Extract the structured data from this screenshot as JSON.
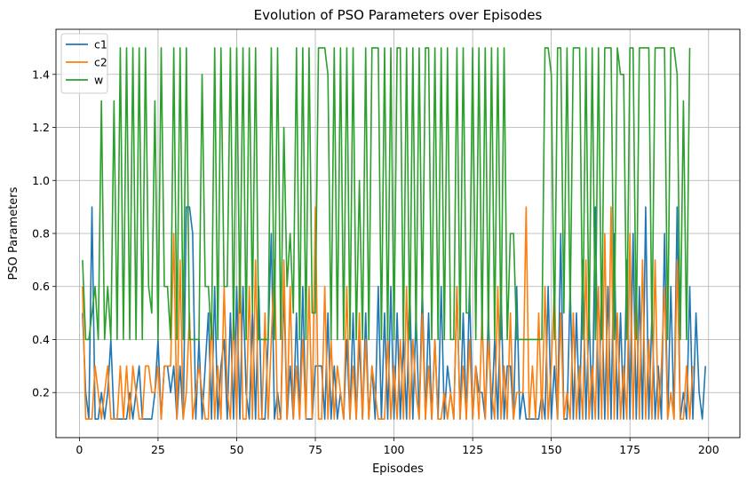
{
  "chart_data": {
    "type": "line",
    "title": "Evolution of PSO Parameters over Episodes",
    "xlabel": "Episodes",
    "ylabel": "PSO Parameters",
    "xlim": [
      -7.45,
      209.95
    ],
    "ylim": [
      0.03,
      1.57
    ],
    "xticks": [
      0,
      25,
      50,
      75,
      100,
      125,
      150,
      175,
      200
    ],
    "yticks": [
      0.2,
      0.4,
      0.6,
      0.8,
      1.0,
      1.2,
      1.4
    ],
    "ytick_labels": [
      "0.2",
      "0.4",
      "0.6",
      "0.8",
      "1.0",
      "1.2",
      "1.4"
    ],
    "grid": true,
    "legend_position": "top-left",
    "x_start": 1,
    "series": [
      {
        "name": "c1",
        "color": "#1f77b4",
        "values": [
          0.5,
          0.2,
          0.1,
          0.9,
          0.1,
          0.1,
          0.2,
          0.1,
          0.2,
          0.4,
          0.1,
          0.1,
          0.1,
          0.1,
          0.1,
          0.2,
          0.1,
          0.2,
          0.3,
          0.1,
          0.1,
          0.1,
          0.1,
          0.2,
          0.4,
          0.1,
          0.3,
          0.3,
          0.2,
          0.3,
          0.1,
          0.3,
          0.1,
          0.9,
          0.9,
          0.8,
          0.1,
          0.4,
          0.1,
          0.3,
          0.5,
          0.1,
          0.6,
          0.1,
          0.3,
          0.4,
          0.1,
          0.5,
          0.1,
          0.6,
          0.1,
          0.6,
          0.2,
          0.1,
          0.5,
          0.1,
          0.6,
          0.1,
          0.1,
          0.4,
          0.8,
          0.1,
          0.2,
          0.1,
          0.6,
          0.1,
          0.3,
          0.1,
          0.5,
          0.1,
          0.6,
          0.1,
          0.1,
          0.1,
          0.3,
          0.3,
          0.3,
          0.1,
          0.5,
          0.1,
          0.3,
          0.1,
          0.2,
          0.1,
          0.4,
          0.1,
          0.5,
          0.1,
          0.4,
          0.1,
          0.5,
          0.1,
          0.3,
          0.1,
          0.6,
          0.1,
          0.5,
          0.1,
          0.6,
          0.1,
          0.5,
          0.1,
          0.4,
          0.1,
          0.6,
          0.1,
          0.5,
          0.1,
          0.6,
          0.1,
          0.5,
          0.1,
          0.4,
          0.1,
          0.6,
          0.1,
          0.3,
          0.2,
          0.1,
          0.6,
          0.1,
          0.5,
          0.1,
          0.6,
          0.1,
          0.3,
          0.2,
          0.2,
          0.1,
          0.5,
          0.1,
          0.4,
          0.1,
          0.6,
          0.1,
          0.3,
          0.3,
          0.1,
          0.6,
          0.1,
          0.2,
          0.1,
          0.1,
          0.1,
          0.1,
          0.1,
          0.2,
          0.1,
          0.6,
          0.1,
          0.3,
          0.1,
          0.8,
          0.1,
          0.1,
          0.6,
          0.1,
          0.5,
          0.1,
          0.7,
          0.1,
          0.5,
          0.1,
          0.9,
          0.1,
          0.6,
          0.1,
          0.6,
          0.1,
          0.8,
          0.1,
          0.5,
          0.1,
          0.7,
          0.1,
          0.8,
          0.1,
          0.6,
          0.1,
          0.9,
          0.1,
          0.5,
          0.1,
          0.3,
          0.1,
          0.8,
          0.1,
          0.6,
          0.1,
          0.9,
          0.1,
          0.2,
          0.1,
          0.6,
          0.1,
          0.5,
          0.2,
          0.1,
          0.3
        ]
      },
      {
        "name": "c2",
        "color": "#ff7f0e",
        "values": [
          0.6,
          0.1,
          0.1,
          0.1,
          0.3,
          0.2,
          0.1,
          0.2,
          0.3,
          0.1,
          0.1,
          0.1,
          0.3,
          0.1,
          0.3,
          0.1,
          0.3,
          0.2,
          0.1,
          0.1,
          0.3,
          0.3,
          0.2,
          0.2,
          0.3,
          0.1,
          0.3,
          0.3,
          0.3,
          0.8,
          0.1,
          0.7,
          0.1,
          0.2,
          0.5,
          0.1,
          0.2,
          0.3,
          0.2,
          0.1,
          0.1,
          0.5,
          0.1,
          0.3,
          0.1,
          0.6,
          0.2,
          0.1,
          0.5,
          0.1,
          0.7,
          0.1,
          0.1,
          0.6,
          0.1,
          0.7,
          0.1,
          0.1,
          0.5,
          0.1,
          0.4,
          0.7,
          0.1,
          0.1,
          0.7,
          0.1,
          0.6,
          0.1,
          0.3,
          0.1,
          0.4,
          0.1,
          0.6,
          0.1,
          0.9,
          0.1,
          0.1,
          0.6,
          0.1,
          0.4,
          0.1,
          0.3,
          0.2,
          0.1,
          0.6,
          0.1,
          0.3,
          0.1,
          0.5,
          0.1,
          0.4,
          0.1,
          0.3,
          0.2,
          0.1,
          0.1,
          0.1,
          0.4,
          0.1,
          0.3,
          0.1,
          0.4,
          0.1,
          0.6,
          0.1,
          0.4,
          0.2,
          0.1,
          0.5,
          0.1,
          0.3,
          0.1,
          0.4,
          0.1,
          0.1,
          0.2,
          0.1,
          0.2,
          0.1,
          0.6,
          0.1,
          0.3,
          0.1,
          0.4,
          0.1,
          0.3,
          0.1,
          0.5,
          0.1,
          0.4,
          0.2,
          0.1,
          0.6,
          0.1,
          0.3,
          0.1,
          0.5,
          0.1,
          0.2,
          0.2,
          0.2,
          0.9,
          0.1,
          0.3,
          0.1,
          0.5,
          0.1,
          0.6,
          0.1,
          0.3,
          0.6,
          0.1,
          0.5,
          0.1,
          0.2,
          0.1,
          0.5,
          0.1,
          0.3,
          0.1,
          0.7,
          0.1,
          0.3,
          0.1,
          0.6,
          0.1,
          0.8,
          0.1,
          0.9,
          0.1,
          0.5,
          0.1,
          0.3,
          0.1,
          0.8,
          0.1,
          0.6,
          0.1,
          0.7,
          0.1,
          0.4,
          0.1,
          0.7,
          0.1,
          0.3,
          0.6,
          0.1,
          0.2,
          0.1,
          0.7,
          0.1,
          0.1,
          0.3,
          0.1,
          0.3
        ]
      },
      {
        "name": "w",
        "color": "#2ca02c",
        "values": [
          0.7,
          0.4,
          0.4,
          0.5,
          0.6,
          0.4,
          1.3,
          0.4,
          0.6,
          0.4,
          1.3,
          0.4,
          1.5,
          0.4,
          1.5,
          0.4,
          1.5,
          0.4,
          1.5,
          0.4,
          1.5,
          0.6,
          0.5,
          1.3,
          0.4,
          1.5,
          0.6,
          0.6,
          0.4,
          1.5,
          0.4,
          1.5,
          0.4,
          1.5,
          0.4,
          0.4,
          0.4,
          0.4,
          1.4,
          0.6,
          0.6,
          0.4,
          1.5,
          0.4,
          1.5,
          0.6,
          0.6,
          1.5,
          0.4,
          1.5,
          0.5,
          1.5,
          0.4,
          1.5,
          0.5,
          1.5,
          0.4,
          0.4,
          0.4,
          0.4,
          1.5,
          0.4,
          1.5,
          0.4,
          1.2,
          0.6,
          0.8,
          0.5,
          1.5,
          0.4,
          1.5,
          0.4,
          1.5,
          0.5,
          0.5,
          1.5,
          1.5,
          1.5,
          1.4,
          0.4,
          1.5,
          0.4,
          1.5,
          0.4,
          1.5,
          0.4,
          1.5,
          0.4,
          1.0,
          0.4,
          1.5,
          0.4,
          1.5,
          1.5,
          1.5,
          0.4,
          1.5,
          0.4,
          1.5,
          0.4,
          1.5,
          1.5,
          0.4,
          1.5,
          0.4,
          1.5,
          0.4,
          1.5,
          0.5,
          1.5,
          1.5,
          0.4,
          1.5,
          0.4,
          1.5,
          0.4,
          1.5,
          0.4,
          0.4,
          1.5,
          0.4,
          1.5,
          0.5,
          0.5,
          1.5,
          0.4,
          1.5,
          0.4,
          1.5,
          0.4,
          1.5,
          0.4,
          1.5,
          0.4,
          1.5,
          0.4,
          0.8,
          0.8,
          0.4,
          0.4,
          0.4,
          0.4,
          0.4,
          0.4,
          0.4,
          0.4,
          0.4,
          1.5,
          1.5,
          1.4,
          0.4,
          1.5,
          1.5,
          0.5,
          1.5,
          0.5,
          1.5,
          1.5,
          1.5,
          0.4,
          1.5,
          0.4,
          1.5,
          0.4,
          1.5,
          0.4,
          1.5,
          1.5,
          1.5,
          0.4,
          1.5,
          1.4,
          1.4,
          0.4,
          1.5,
          1.5,
          0.4,
          1.5,
          1.5,
          1.5,
          1.5,
          0.4,
          1.5,
          1.5,
          1.5,
          1.5,
          0.4,
          1.5,
          1.5,
          1.4,
          0.4,
          1.3,
          0.4,
          1.5
        ]
      }
    ]
  }
}
